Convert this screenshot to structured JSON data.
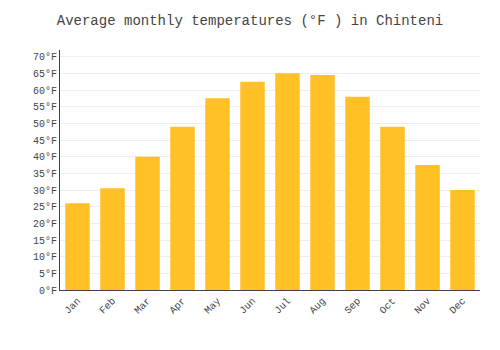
{
  "chart_data": {
    "type": "bar",
    "title": "Average monthly temperatures (°F ) in Chinteni",
    "categories": [
      "Jan",
      "Feb",
      "Mar",
      "Apr",
      "May",
      "Jun",
      "Jul",
      "Aug",
      "Sep",
      "Oct",
      "Nov",
      "Dec"
    ],
    "values": [
      26,
      30.5,
      40,
      49,
      57.5,
      62.5,
      65,
      64.5,
      58,
      49,
      37.5,
      30
    ],
    "color": "#FFC125",
    "ylim": [
      0,
      72
    ],
    "yticks": [
      {
        "value": 0,
        "label": "0°F"
      },
      {
        "value": 5,
        "label": "5°F"
      },
      {
        "value": 10,
        "label": "10°F"
      },
      {
        "value": 15,
        "label": "15°F"
      },
      {
        "value": 20,
        "label": "20°F"
      },
      {
        "value": 25,
        "label": "25°F"
      },
      {
        "value": 30,
        "label": "30°F"
      },
      {
        "value": 35,
        "label": "35°F"
      },
      {
        "value": 40,
        "label": "40°F"
      },
      {
        "value": 45,
        "label": "45°F"
      },
      {
        "value": 50,
        "label": "50°F"
      },
      {
        "value": 55,
        "label": "55°F"
      },
      {
        "value": 60,
        "label": "60°F"
      },
      {
        "value": 65,
        "label": "65°F"
      },
      {
        "value": 70,
        "label": "70°F"
      }
    ],
    "grid": true
  }
}
